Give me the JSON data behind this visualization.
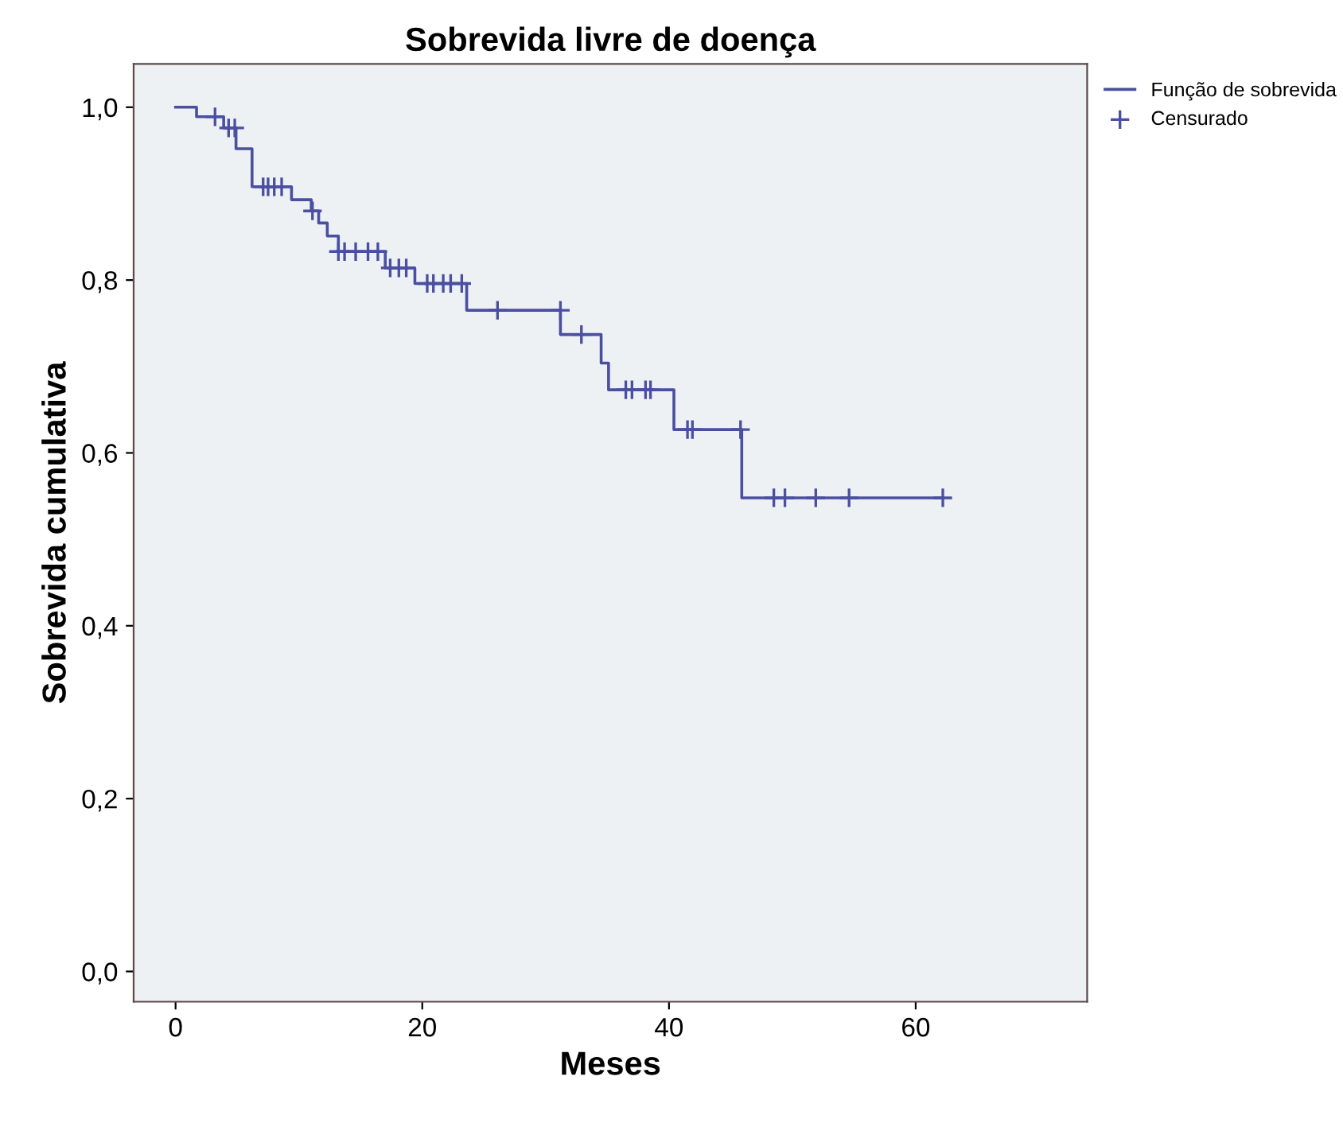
{
  "chart_data": {
    "type": "step",
    "title": "Sobrevida livre de doença",
    "xlabel": "Meses",
    "ylabel": "Sobrevida cumulativa",
    "xlim": [
      -3.4,
      73.9
    ],
    "ylim": [
      -0.035,
      1.05
    ],
    "xticks": [
      0,
      20,
      40,
      60
    ],
    "yticks": [
      {
        "value": 0,
        "label": "0,0"
      },
      {
        "value": 0.2,
        "label": "0,2"
      },
      {
        "value": 0.4,
        "label": "0,4"
      },
      {
        "value": 0.6,
        "label": "0,6"
      },
      {
        "value": 0.8,
        "label": "0,8"
      },
      {
        "value": 1.0,
        "label": "1,0"
      }
    ],
    "grid": false,
    "legend": "top right",
    "series": [
      {
        "name": "Função de sobrevida",
        "color": "#4a4fa0",
        "marker": "none",
        "x": [
          0,
          1.7,
          3.9,
          4.9,
          6.2,
          9.4,
          11.0,
          11.6,
          12.3,
          13.2,
          17.0,
          19.4,
          23.6,
          31.2,
          34.5,
          35.1,
          40.4,
          45.9,
          62.2
        ],
        "values": [
          1.0,
          0.989,
          0.976,
          0.952,
          0.908,
          0.893,
          0.88,
          0.866,
          0.851,
          0.833,
          0.814,
          0.796,
          0.765,
          0.737,
          0.704,
          0.673,
          0.627,
          0.548,
          0.548
        ]
      },
      {
        "name": "Censurado",
        "type": "scatter",
        "color": "#4a4fa0",
        "marker": "cross",
        "x": [
          3.2,
          4.3,
          4.8,
          7.1,
          7.5,
          8.0,
          8.6,
          11.1,
          13.2,
          13.7,
          14.6,
          15.6,
          16.4,
          17.4,
          18.1,
          18.7,
          20.4,
          20.9,
          21.7,
          22.3,
          23.2,
          26.1,
          31.2,
          32.9,
          36.5,
          37.0,
          38.1,
          38.5,
          41.5,
          41.9,
          45.8,
          48.5,
          49.4,
          51.9,
          54.6,
          62.2
        ],
        "values": [
          0.989,
          0.976,
          0.976,
          0.908,
          0.908,
          0.908,
          0.908,
          0.88,
          0.833,
          0.833,
          0.833,
          0.833,
          0.833,
          0.814,
          0.814,
          0.814,
          0.796,
          0.796,
          0.796,
          0.796,
          0.796,
          0.765,
          0.765,
          0.737,
          0.673,
          0.673,
          0.673,
          0.673,
          0.627,
          0.627,
          0.627,
          0.548,
          0.548,
          0.548,
          0.548,
          0.548
        ]
      }
    ]
  }
}
